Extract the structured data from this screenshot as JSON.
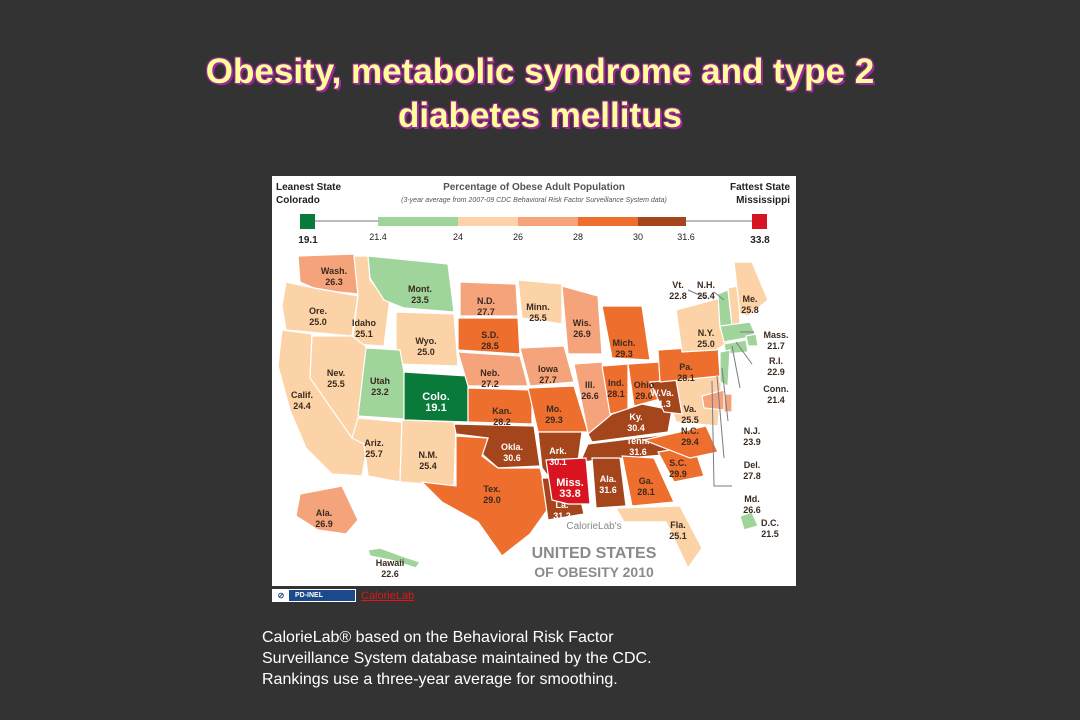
{
  "slide": {
    "title_line1": "Obesity, metabolic syndrome and type 2",
    "title_line2": "diabetes mellitus"
  },
  "map": {
    "header": {
      "leanest_title": "Leanest State",
      "leanest_state": "Colorado",
      "leanest_value": "19.1",
      "center_title": "Percentage of Obese Adult Population",
      "center_subtitle": "(3-year average from 2007-09 CDC Behavioral Risk Factor Surveillance System data)",
      "fattest_title": "Fattest State",
      "fattest_state": "Mississippi",
      "fattest_value": "33.8"
    },
    "legend_ticks": [
      "21.4",
      "24",
      "26",
      "28",
      "30",
      "31.6"
    ],
    "colors": {
      "leanest": "#0a7a3a",
      "green": "#9fd49a",
      "peach": "#fbd3a6",
      "salmon": "#f4a37a",
      "orange": "#ee6e2e",
      "brown": "#a4451c",
      "fattest": "#d7141f"
    },
    "states": [
      {
        "abbr": "Wash.",
        "value": "26.3",
        "cat": "salmon"
      },
      {
        "abbr": "Ore.",
        "value": "25.0",
        "cat": "peach"
      },
      {
        "abbr": "Calif.",
        "value": "24.4",
        "cat": "peach"
      },
      {
        "abbr": "Idaho",
        "value": "25.1",
        "cat": "peach"
      },
      {
        "abbr": "Nev.",
        "value": "25.5",
        "cat": "peach"
      },
      {
        "abbr": "Mont.",
        "value": "23.5",
        "cat": "green"
      },
      {
        "abbr": "Wyo.",
        "value": "25.0",
        "cat": "peach"
      },
      {
        "abbr": "Utah",
        "value": "23.2",
        "cat": "green"
      },
      {
        "abbr": "Colo.",
        "value": "19.1",
        "cat": "leanest"
      },
      {
        "abbr": "Ariz.",
        "value": "25.7",
        "cat": "peach"
      },
      {
        "abbr": "N.M.",
        "value": "25.4",
        "cat": "peach"
      },
      {
        "abbr": "N.D.",
        "value": "27.7",
        "cat": "salmon"
      },
      {
        "abbr": "S.D.",
        "value": "28.5",
        "cat": "orange"
      },
      {
        "abbr": "Neb.",
        "value": "27.2",
        "cat": "salmon"
      },
      {
        "abbr": "Kan.",
        "value": "28.2",
        "cat": "orange"
      },
      {
        "abbr": "Okla.",
        "value": "30.6",
        "cat": "brown"
      },
      {
        "abbr": "Tex.",
        "value": "29.0",
        "cat": "orange"
      },
      {
        "abbr": "Minn.",
        "value": "25.5",
        "cat": "peach"
      },
      {
        "abbr": "Iowa",
        "value": "27.7",
        "cat": "salmon"
      },
      {
        "abbr": "Mo.",
        "value": "29.3",
        "cat": "orange"
      },
      {
        "abbr": "Ark.",
        "value": "30.1",
        "cat": "brown"
      },
      {
        "abbr": "La.",
        "value": "31.2",
        "cat": "brown"
      },
      {
        "abbr": "Wis.",
        "value": "26.9",
        "cat": "salmon"
      },
      {
        "abbr": "Ill.",
        "value": "26.6",
        "cat": "salmon"
      },
      {
        "abbr": "Mich.",
        "value": "29.3",
        "cat": "orange"
      },
      {
        "abbr": "Ind.",
        "value": "28.1",
        "cat": "orange"
      },
      {
        "abbr": "Ohio",
        "value": "29.0",
        "cat": "orange"
      },
      {
        "abbr": "Ky.",
        "value": "30.4",
        "cat": "brown"
      },
      {
        "abbr": "Tenn.",
        "value": "31.6",
        "cat": "brown"
      },
      {
        "abbr": "Miss.",
        "value": "33.8",
        "cat": "fattest"
      },
      {
        "abbr": "Ala.",
        "value": "31.6",
        "cat": "brown"
      },
      {
        "abbr": "Ga.",
        "value": "28.1",
        "cat": "orange"
      },
      {
        "abbr": "Fla.",
        "value": "25.1",
        "cat": "peach"
      },
      {
        "abbr": "S.C.",
        "value": "29.9",
        "cat": "orange"
      },
      {
        "abbr": "N.C.",
        "value": "29.4",
        "cat": "orange"
      },
      {
        "abbr": "Va.",
        "value": "25.5",
        "cat": "peach"
      },
      {
        "abbr": "W.Va.",
        "value": "31.3",
        "cat": "brown"
      },
      {
        "abbr": "Pa.",
        "value": "28.1",
        "cat": "orange"
      },
      {
        "abbr": "N.Y.",
        "value": "25.0",
        "cat": "peach"
      },
      {
        "abbr": "Vt.",
        "value": "22.8",
        "cat": "green"
      },
      {
        "abbr": "N.H.",
        "value": "25.4",
        "cat": "peach"
      },
      {
        "abbr": "Me.",
        "value": "25.8",
        "cat": "peach"
      },
      {
        "abbr": "Mass.",
        "value": "21.7",
        "cat": "green"
      },
      {
        "abbr": "R.I.",
        "value": "22.9",
        "cat": "green"
      },
      {
        "abbr": "Conn.",
        "value": "21.4",
        "cat": "green"
      },
      {
        "abbr": "N.J.",
        "value": "23.9",
        "cat": "green"
      },
      {
        "abbr": "Del.",
        "value": "27.8",
        "cat": "salmon"
      },
      {
        "abbr": "Md.",
        "value": "26.6",
        "cat": "salmon"
      },
      {
        "abbr": "D.C.",
        "value": "21.5",
        "cat": "green"
      },
      {
        "abbr": "Ala.",
        "value": "26.9",
        "cat": "salmon"
      },
      {
        "abbr": "Hawaii",
        "value": "22.6",
        "cat": "green"
      }
    ],
    "brand_small": "CalorieLab's",
    "brand_line1": "UNITED STATES",
    "brand_line2": "OF OBESITY 2010"
  },
  "credit": {
    "license": "PD-INEL",
    "link_text": "CalorieLab "
  },
  "caption": {
    "line1": "CalorieLab® based on the Behavioral Risk Factor",
    "line2": "Surveillance System database maintained by the CDC.",
    "line3": "Rankings use a three-year average for smoothing."
  }
}
